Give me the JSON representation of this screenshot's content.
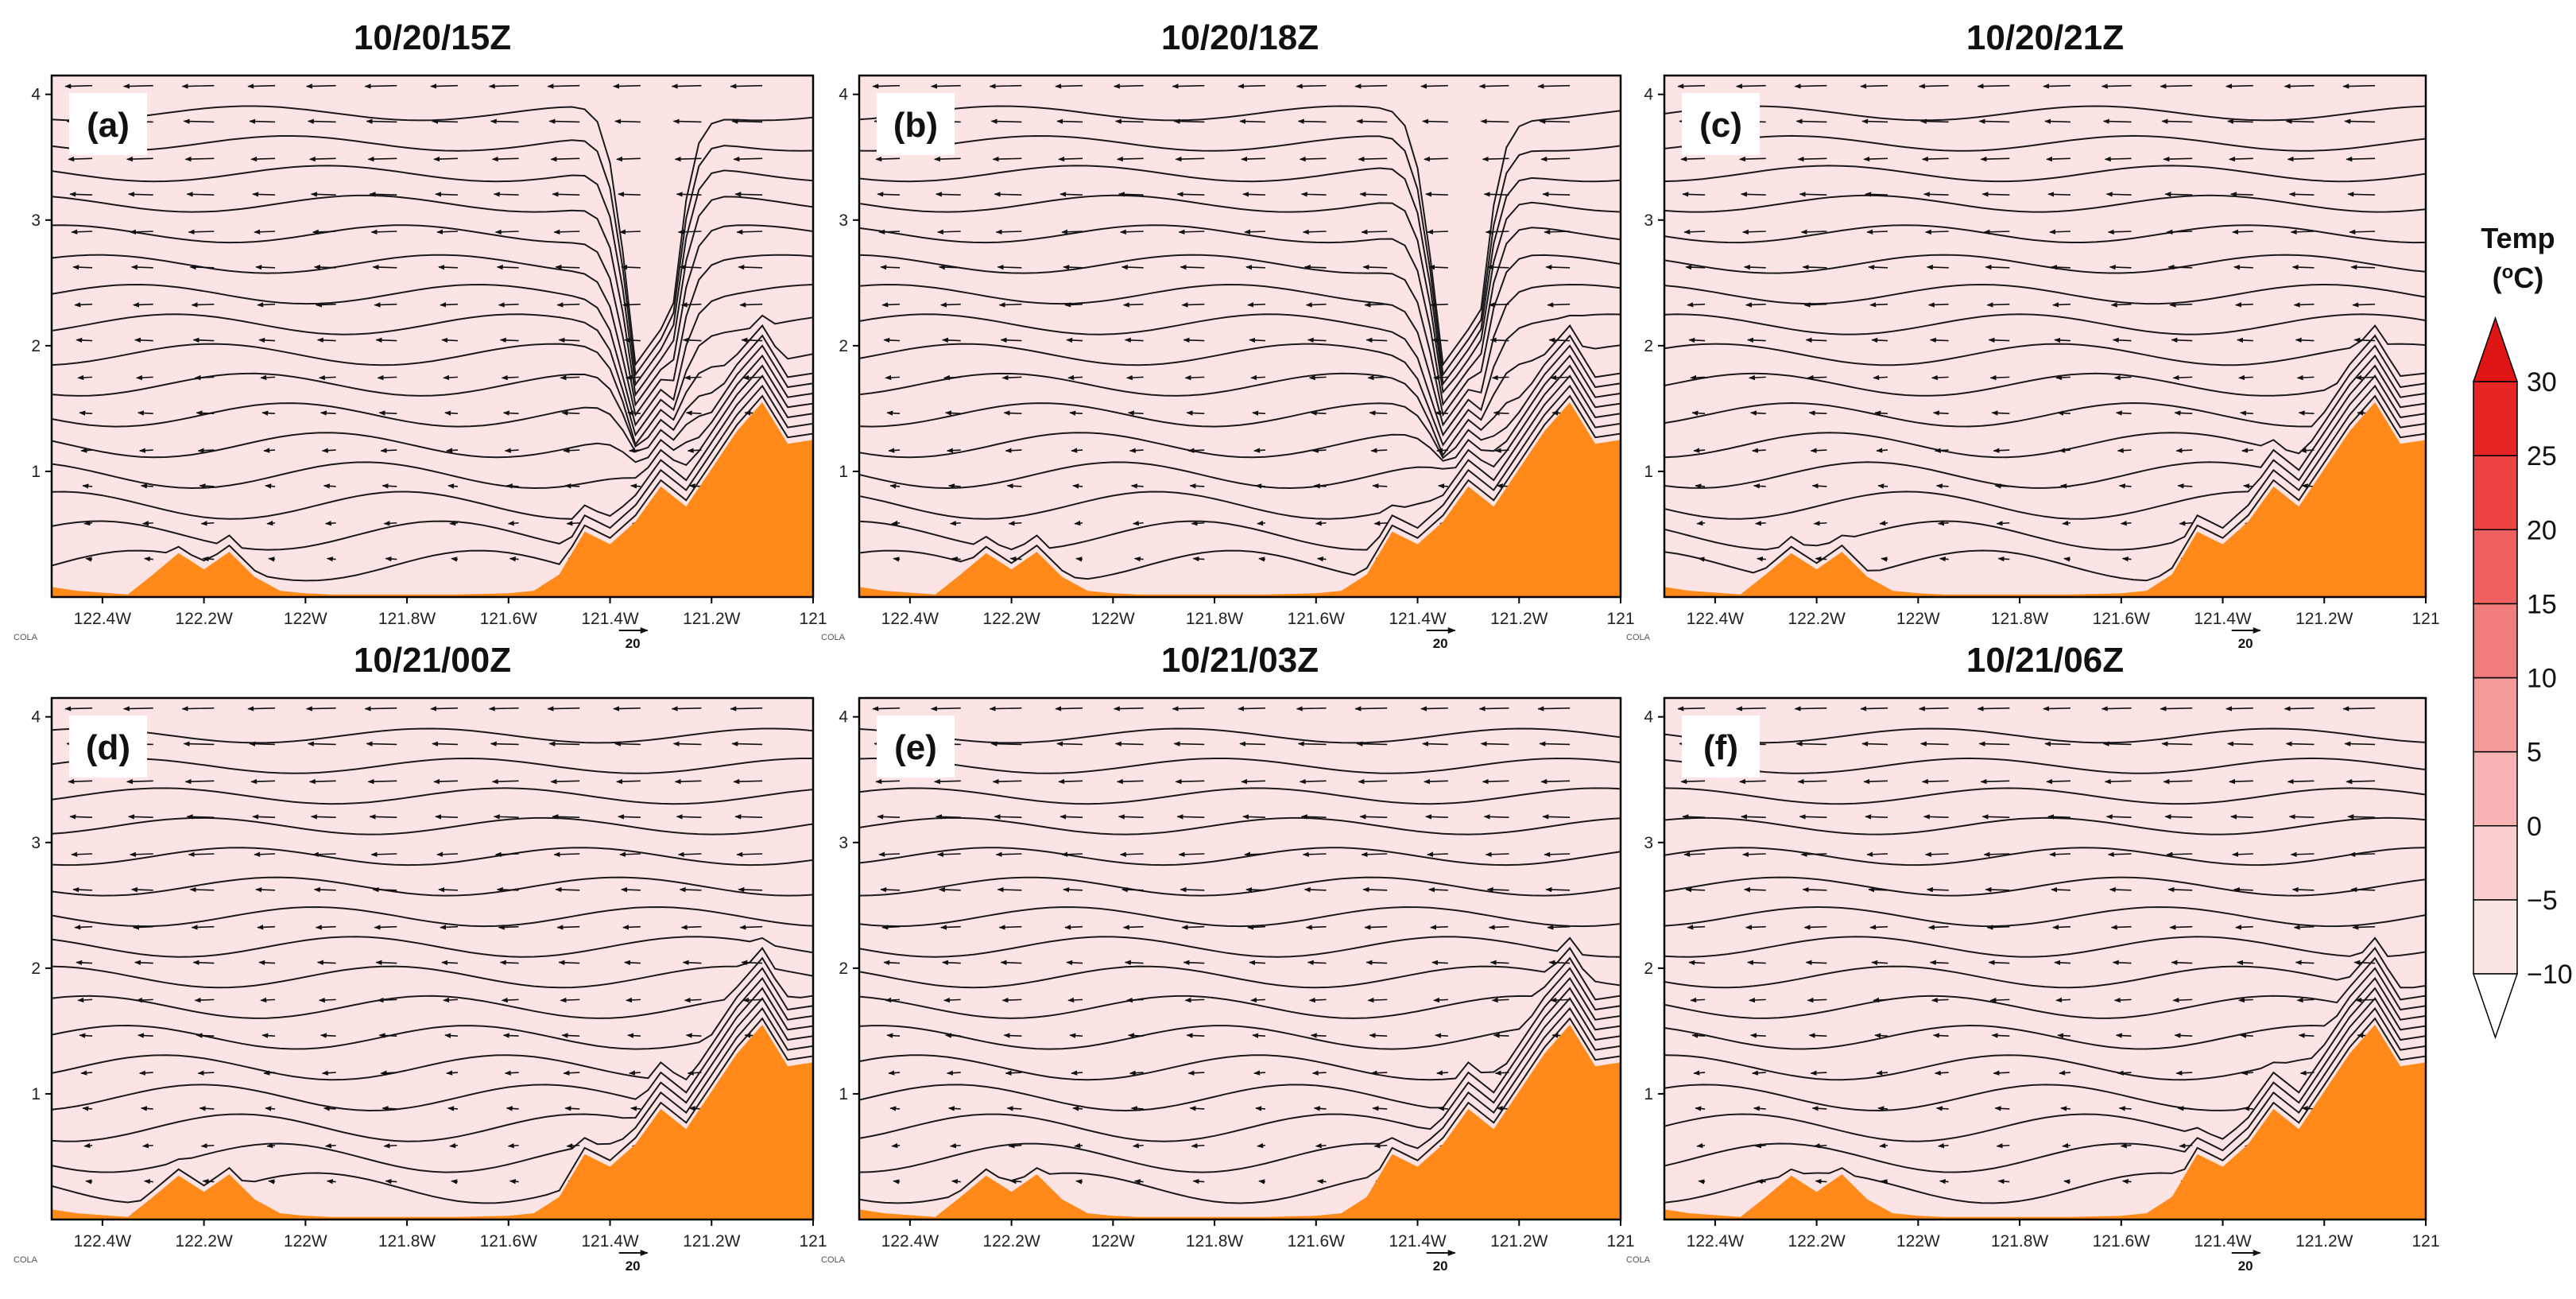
{
  "chart_data": {
    "type": "contour",
    "description_kind": "vertical cross-sections of temperature with streamlines and wind vectors",
    "xlabel_ticks": [
      "122.4W",
      "122.2W",
      "122W",
      "121.8W",
      "121.6W",
      "121.4W",
      "121.2W",
      "121"
    ],
    "x_range": [
      -122.5,
      -121.0
    ],
    "y_ticks": [
      "1",
      "2",
      "3",
      "4"
    ],
    "y_range": [
      0,
      4.15
    ],
    "reference_vector_label": "20",
    "source_tag": "COLA",
    "panels": [
      {
        "label": "(a)",
        "title": "10/20/15Z"
      },
      {
        "label": "(b)",
        "title": "10/20/18Z"
      },
      {
        "label": "(c)",
        "title": "10/20/21Z"
      },
      {
        "label": "(d)",
        "title": "10/21/00Z"
      },
      {
        "label": "(e)",
        "title": "10/21/03Z"
      },
      {
        "label": "(f)",
        "title": "10/21/06Z"
      }
    ],
    "colorbar": {
      "title": "Temp",
      "unit": "(oC)",
      "unit_base": "(",
      "unit_sup": "o",
      "unit_tail": "C)",
      "ticks": [
        "30",
        "25",
        "20",
        "15",
        "10",
        "5",
        "0",
        "−5",
        "−10"
      ],
      "tick_values": [
        30,
        25,
        20,
        15,
        10,
        5,
        0,
        -5,
        -10
      ],
      "range": [
        -10,
        30
      ],
      "levels": [
        {
          "min": -10,
          "max": -5,
          "color": "#fde4e4"
        },
        {
          "min": -5,
          "max": 0,
          "color": "#fbcfcf"
        },
        {
          "min": 0,
          "max": 5,
          "color": "#f8b4b4"
        },
        {
          "min": 5,
          "max": 10,
          "color": "#f59a9a"
        },
        {
          "min": 10,
          "max": 15,
          "color": "#f27d7d"
        },
        {
          "min": 15,
          "max": 20,
          "color": "#ef5f5f"
        },
        {
          "min": 20,
          "max": 25,
          "color": "#ec4242"
        },
        {
          "min": 25,
          "max": 30,
          "color": "#e82525"
        }
      ]
    },
    "terrain_color": "#ff8a1a",
    "terrain_profile": {
      "x": [
        -122.5,
        -122.45,
        -122.35,
        -122.3,
        -122.25,
        -122.2,
        -122.15,
        -122.1,
        -122.05,
        -122.0,
        -121.95,
        -121.8,
        -121.7,
        -121.6,
        -121.55,
        -121.5,
        -121.45,
        -121.4,
        -121.35,
        -121.3,
        -121.25,
        -121.2,
        -121.15,
        -121.1,
        -121.05,
        -121.0
      ],
      "z": [
        0.08,
        0.05,
        0.02,
        0.18,
        0.35,
        0.22,
        0.36,
        0.16,
        0.05,
        0.03,
        0.02,
        0.02,
        0.02,
        0.03,
        0.05,
        0.18,
        0.52,
        0.42,
        0.6,
        0.88,
        0.72,
        1.02,
        1.32,
        1.55,
        1.22,
        1.25
      ]
    }
  }
}
